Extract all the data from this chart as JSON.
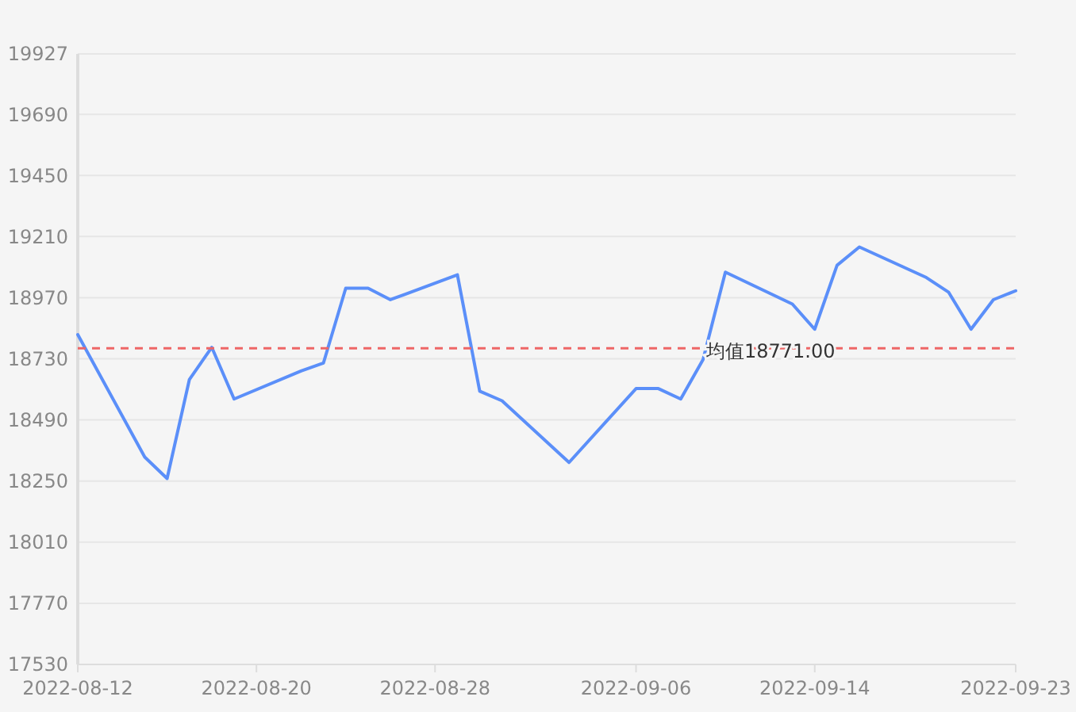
{
  "chart_data": {
    "type": "line",
    "x": [
      "2022-08-12",
      "2022-08-15",
      "2022-08-16",
      "2022-08-17",
      "2022-08-18",
      "2022-08-19",
      "2022-08-22",
      "2022-08-23",
      "2022-08-24",
      "2022-08-25",
      "2022-08-26",
      "2022-08-29",
      "2022-08-30",
      "2022-08-31",
      "2022-09-03",
      "2022-09-06",
      "2022-09-07",
      "2022-09-08",
      "2022-09-09",
      "2022-09-10",
      "2022-09-13",
      "2022-09-14",
      "2022-09-15",
      "2022-09-16",
      "2022-09-19",
      "2022-09-20",
      "2022-09-21",
      "2022-09-22",
      "2022-09-23"
    ],
    "series": [
      {
        "color": "#5b8ff9",
        "values": [
          18825,
          18344,
          18260,
          18649,
          18775,
          18572,
          18682,
          18713,
          19007,
          19007,
          18962,
          19060,
          18603,
          18565,
          18323,
          18613,
          18613,
          18572,
          18727,
          19070,
          18945,
          18846,
          19097,
          19169,
          19049,
          18991,
          18846,
          18962,
          18997
        ]
      }
    ],
    "xlim": [
      "2022-08-12",
      "2022-09-23"
    ],
    "xticks": [
      "2022-08-12",
      "2022-08-20",
      "2022-08-28",
      "2022-09-06",
      "2022-09-14",
      "2022-09-23"
    ],
    "ylim": [
      17530,
      19927
    ],
    "yticks": [
      17530,
      17770,
      18010,
      18250,
      18490,
      18730,
      18970,
      19210,
      19450,
      19690,
      19927
    ],
    "grid": "y",
    "marker": "none",
    "line_style": "solid",
    "ref_lines": [
      {
        "axis": "y",
        "value": 18771,
        "label": "均值18771.00",
        "color": "#ee6666",
        "line_style": "dashed"
      }
    ]
  }
}
